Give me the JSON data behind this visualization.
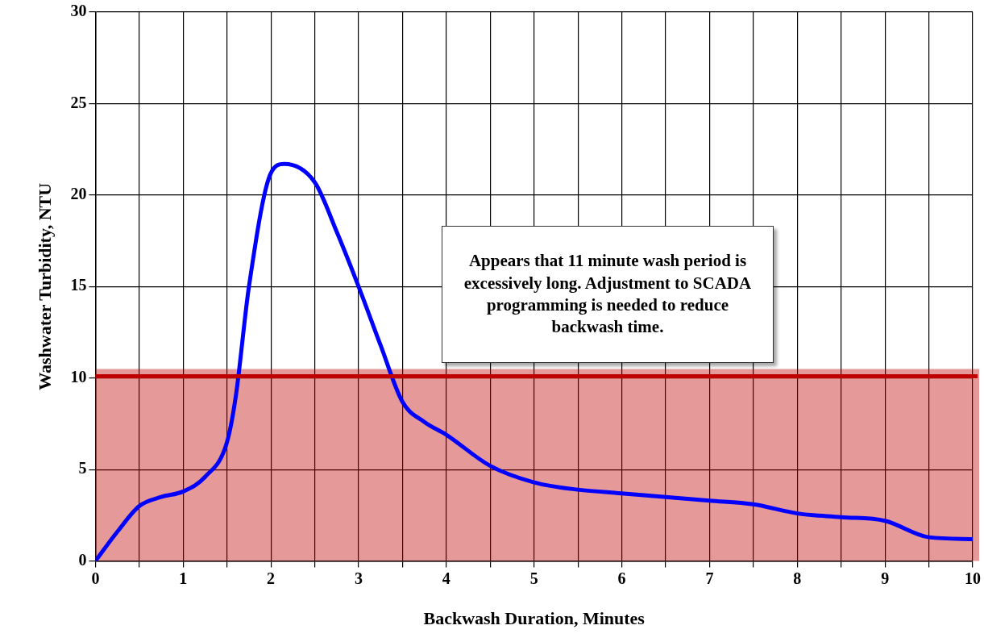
{
  "chart_data": {
    "type": "line",
    "xlabel": "Backwash Duration, Minutes",
    "ylabel": "Washwater Turbidity, NTU",
    "x": [
      0,
      0.25,
      0.5,
      0.75,
      1,
      1.25,
      1.5,
      1.6,
      1.75,
      2,
      2.15,
      2.5,
      2.75,
      3,
      3.25,
      3.5,
      3.75,
      4,
      4.5,
      5,
      5.5,
      6,
      6.5,
      7,
      7.5,
      8,
      8.5,
      9,
      9.5,
      10
    ],
    "series": [
      {
        "color": "#0000ff",
        "values": [
          0,
          1.6,
          3.0,
          3.5,
          3.8,
          4.6,
          6.5,
          9,
          15,
          21.2,
          21.7,
          20.7,
          18,
          15,
          11.8,
          8.7,
          7.6,
          6.9,
          5.2,
          4.3,
          3.9,
          3.7,
          3.5,
          3.3,
          3.1,
          2.6,
          2.4,
          2.2,
          1.3,
          1.2
        ]
      }
    ],
    "xlim": [
      0,
      10
    ],
    "ylim": [
      0,
      30
    ],
    "xticks": [
      0,
      {
        "value": 0.5,
        "label": null
      },
      1,
      {
        "value": 1.5,
        "label": null
      },
      2,
      {
        "value": 2.5,
        "label": null
      },
      3,
      {
        "value": 3.5,
        "label": null
      },
      4,
      {
        "value": 4.5,
        "label": null
      },
      5,
      {
        "value": 5.5,
        "label": null
      },
      6,
      {
        "value": 6.5,
        "label": null
      },
      7,
      {
        "value": 7.5,
        "label": null
      },
      8,
      {
        "value": 8.5,
        "label": null
      },
      9,
      {
        "value": 9.5,
        "label": null
      },
      10
    ],
    "yticks": [
      0,
      5,
      10,
      15,
      20,
      25,
      30
    ],
    "grid": true,
    "marker": "none",
    "line_style": "solid",
    "ref_lines": [
      {
        "axis": "y",
        "value": 10.1,
        "color": "#c00000"
      }
    ],
    "bands": [
      {
        "axis": "y",
        "from": 0,
        "to": 10.5,
        "color": "#c00000"
      }
    ],
    "annotations": [
      "Appears that 11 minute wash period is excessively long. Adjustment to SCADA programming is needed to reduce backwash time."
    ]
  }
}
